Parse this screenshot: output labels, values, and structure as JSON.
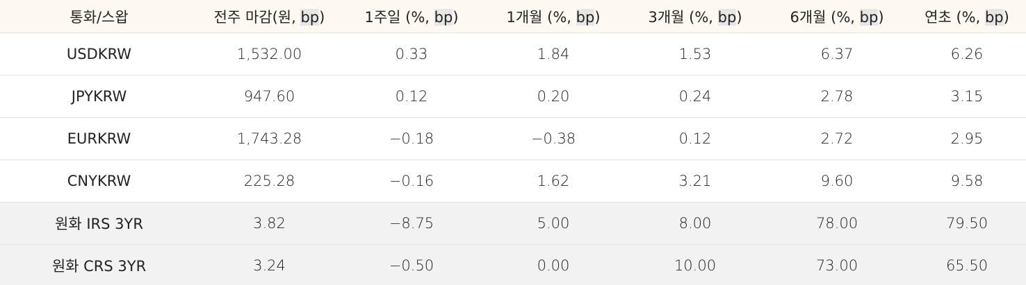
{
  "table": {
    "header": [
      "통화/스왑",
      "전주 마감(원, bp)",
      "1주일 (%, bp)",
      "1개월 (%, bp)",
      "3개월 (%, bp)",
      "6개월 (%, bp)",
      "연초 (%, bp)"
    ],
    "rows": [
      [
        "USDKRW",
        "1,532.00",
        "0.33",
        "1.84",
        "1.53",
        "6.37",
        "6.26"
      ],
      [
        "JPYKRW",
        "947.60",
        "0.12",
        "0.20",
        "0.24",
        "2.78",
        "3.15"
      ],
      [
        "EURKRW",
        "1,743.28",
        "−0.18",
        "−0.38",
        "0.12",
        "2.72",
        "2.95"
      ],
      [
        "CNYKRW",
        "225.28",
        "−0.16",
        "1.62",
        "3.21",
        "9.60",
        "9.58"
      ],
      [
        "원화 IRS 3YR",
        "3.82",
        "−8.75",
        "5.00",
        "8.00",
        "78.00",
        "79.50"
      ],
      [
        "원화 CRS 3YR",
        "3.24",
        "−0.50",
        "0.00",
        "10.00",
        "73.00",
        "65.50"
      ]
    ]
  }
}
